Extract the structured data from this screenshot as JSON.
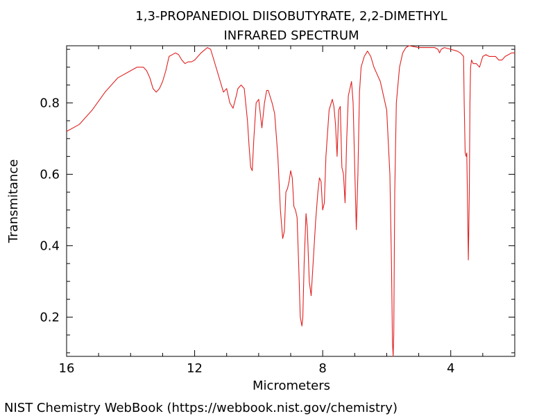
{
  "chart_data": {
    "type": "line",
    "title_line1": "1,3-PROPANEDIOL DIISOBUTYRATE, 2,2-DIMETHYL",
    "title_line2": "INFRARED SPECTRUM",
    "xlabel": "Micrometers",
    "ylabel": "Transmitance",
    "xlim": [
      16,
      2
    ],
    "ylim": [
      0.09,
      0.96
    ],
    "x_reversed": true,
    "x_ticks": [
      16,
      12,
      8,
      4
    ],
    "x_tick_labels": [
      "16",
      "12",
      "8",
      "4"
    ],
    "y_ticks": [
      0.2,
      0.4,
      0.6,
      0.8
    ],
    "y_tick_labels": [
      "0.2",
      "0.4",
      "0.6",
      "0.8"
    ],
    "grid": false,
    "series": [
      {
        "color": "#e02020",
        "x": [
          16.0,
          15.6,
          15.2,
          14.8,
          14.4,
          14.0,
          13.8,
          13.6,
          13.5,
          13.4,
          13.3,
          13.2,
          13.1,
          13.0,
          12.9,
          12.8,
          12.6,
          12.5,
          12.4,
          12.3,
          12.2,
          12.1,
          12.0,
          11.8,
          11.6,
          11.5,
          11.4,
          11.3,
          11.2,
          11.1,
          11.0,
          10.9,
          10.8,
          10.7,
          10.65,
          10.55,
          10.45,
          10.35,
          10.3,
          10.25,
          10.2,
          10.15,
          10.08,
          10.0,
          9.9,
          9.82,
          9.75,
          9.7,
          9.65,
          9.58,
          9.5,
          9.4,
          9.32,
          9.25,
          9.2,
          9.15,
          9.1,
          9.05,
          9.0,
          8.95,
          8.9,
          8.85,
          8.8,
          8.75,
          8.7,
          8.65,
          8.62,
          8.58,
          8.52,
          8.48,
          8.42,
          8.36,
          8.3,
          8.22,
          8.15,
          8.1,
          8.05,
          8.0,
          7.95,
          7.9,
          7.8,
          7.7,
          7.65,
          7.6,
          7.55,
          7.5,
          7.45,
          7.4,
          7.35,
          7.3,
          7.25,
          7.2,
          7.1,
          7.05,
          7.0,
          6.95,
          6.9,
          6.85,
          6.8,
          6.7,
          6.6,
          6.5,
          6.4,
          6.3,
          6.2,
          6.1,
          6.0,
          5.9,
          5.85,
          5.82,
          5.8,
          5.78,
          5.75,
          5.7,
          5.6,
          5.5,
          5.4,
          5.3,
          5.0,
          4.7,
          4.5,
          4.4,
          4.35,
          4.3,
          4.2,
          4.0,
          3.8,
          3.7,
          3.6,
          3.58,
          3.55,
          3.52,
          3.5,
          3.48,
          3.45,
          3.42,
          3.4,
          3.38,
          3.35,
          3.3,
          3.2,
          3.1,
          3.0,
          2.9,
          2.8,
          2.7,
          2.6,
          2.5,
          2.4,
          2.3,
          2.2,
          2.1,
          2.0
        ],
        "y": [
          0.72,
          0.74,
          0.78,
          0.83,
          0.87,
          0.89,
          0.9,
          0.9,
          0.89,
          0.87,
          0.84,
          0.83,
          0.84,
          0.86,
          0.89,
          0.93,
          0.94,
          0.935,
          0.92,
          0.91,
          0.915,
          0.915,
          0.92,
          0.94,
          0.955,
          0.95,
          0.92,
          0.89,
          0.86,
          0.83,
          0.84,
          0.8,
          0.785,
          0.82,
          0.84,
          0.85,
          0.84,
          0.75,
          0.68,
          0.62,
          0.61,
          0.7,
          0.8,
          0.81,
          0.73,
          0.8,
          0.835,
          0.835,
          0.82,
          0.8,
          0.77,
          0.65,
          0.5,
          0.42,
          0.44,
          0.55,
          0.56,
          0.58,
          0.61,
          0.59,
          0.51,
          0.5,
          0.48,
          0.35,
          0.2,
          0.175,
          0.2,
          0.35,
          0.49,
          0.45,
          0.3,
          0.26,
          0.35,
          0.47,
          0.55,
          0.59,
          0.58,
          0.5,
          0.52,
          0.65,
          0.78,
          0.81,
          0.79,
          0.74,
          0.65,
          0.78,
          0.79,
          0.62,
          0.6,
          0.52,
          0.7,
          0.82,
          0.86,
          0.8,
          0.62,
          0.445,
          0.6,
          0.83,
          0.9,
          0.93,
          0.945,
          0.93,
          0.9,
          0.88,
          0.86,
          0.82,
          0.78,
          0.6,
          0.35,
          0.13,
          0.09,
          0.15,
          0.55,
          0.8,
          0.9,
          0.94,
          0.955,
          0.96,
          0.955,
          0.955,
          0.955,
          0.95,
          0.94,
          0.95,
          0.955,
          0.95,
          0.945,
          0.94,
          0.93,
          0.8,
          0.66,
          0.65,
          0.66,
          0.55,
          0.36,
          0.55,
          0.8,
          0.9,
          0.92,
          0.91,
          0.91,
          0.9,
          0.93,
          0.935,
          0.93,
          0.93,
          0.93,
          0.92,
          0.92,
          0.93,
          0.935,
          0.94,
          0.94
        ]
      }
    ]
  },
  "footer": {
    "attribution": "NIST Chemistry WebBook (https://webbook.nist.gov/chemistry)"
  }
}
